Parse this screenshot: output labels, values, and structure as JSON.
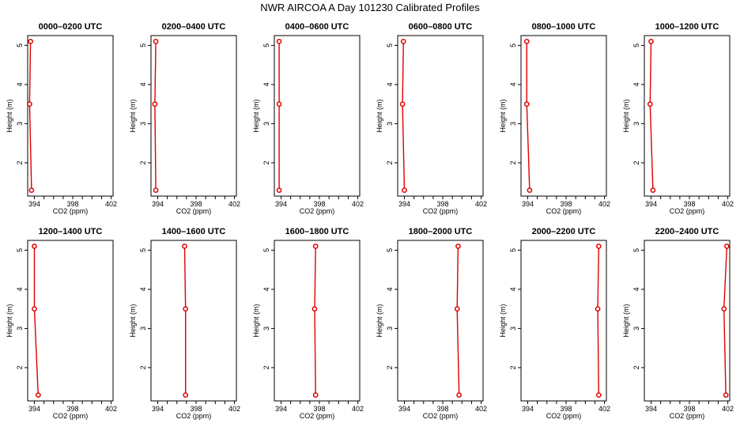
{
  "title": "NWR AIRCOA A  Day 101230  Calibrated Profiles",
  "colors": {
    "line": "#e00000",
    "marker": "#e00000",
    "frame": "#000000"
  },
  "chart_data": {
    "type": "line",
    "title": "NWR AIRCOA A  Day 101230  Calibrated Profiles",
    "xlabel": "CO2 (ppm)",
    "ylabel": "Height (m)",
    "xlim": [
      393.3,
      402.2
    ],
    "ylim": [
      1.15,
      5.25
    ],
    "xticks": [
      394,
      395,
      396,
      397,
      398,
      399,
      400,
      401,
      402
    ],
    "xtick_labels": [
      "394",
      "",
      "",
      "",
      "398",
      "",
      "",
      "",
      "402"
    ],
    "yticks": [
      2,
      3,
      4,
      5
    ],
    "ytick_labels": [
      "2",
      "3",
      "4",
      "5"
    ],
    "heights": [
      5.1,
      3.5,
      1.3
    ],
    "panels": [
      {
        "title": "0000–0200 UTC",
        "co2": [
          393.6,
          393.5,
          393.7
        ]
      },
      {
        "title": "0200–0400 UTC",
        "co2": [
          393.8,
          393.7,
          393.8
        ]
      },
      {
        "title": "0400–0600 UTC",
        "co2": [
          393.8,
          393.8,
          393.8
        ]
      },
      {
        "title": "0600–0800 UTC",
        "co2": [
          393.9,
          393.8,
          394.0
        ]
      },
      {
        "title": "0800–1000 UTC",
        "co2": [
          393.9,
          393.9,
          394.2
        ]
      },
      {
        "title": "1000–1200 UTC",
        "co2": [
          394.0,
          393.9,
          394.2
        ]
      },
      {
        "title": "1200–1400 UTC",
        "co2": [
          394.0,
          394.0,
          394.4
        ]
      },
      {
        "title": "1400–1600 UTC",
        "co2": [
          396.8,
          396.9,
          396.9
        ]
      },
      {
        "title": "1600–1800 UTC",
        "co2": [
          397.6,
          397.5,
          397.6
        ]
      },
      {
        "title": "1800–2000 UTC",
        "co2": [
          399.6,
          399.5,
          399.7
        ]
      },
      {
        "title": "2000–2200 UTC",
        "co2": [
          401.4,
          401.3,
          401.4
        ]
      },
      {
        "title": "2200–2400 UTC",
        "co2": [
          401.9,
          401.6,
          401.8
        ]
      }
    ]
  }
}
